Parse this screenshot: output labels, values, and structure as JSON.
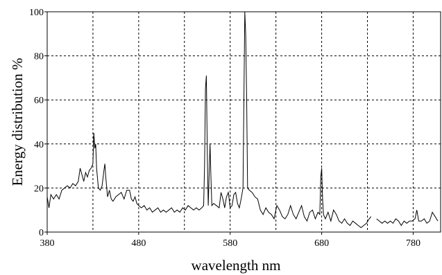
{
  "chart_data": {
    "type": "line",
    "xlabel": "wavelength nm",
    "ylabel": "Energy distribution %",
    "xlim": [
      380,
      810
    ],
    "ylim": [
      0,
      100
    ],
    "xticks": [
      380,
      480,
      580,
      680,
      780
    ],
    "xminor": [
      430,
      530,
      630,
      730
    ],
    "yticks": [
      0,
      20,
      40,
      60,
      80,
      100
    ],
    "grid": true,
    "series": [
      {
        "color": "#000000",
        "x": [
          380,
          382,
          384,
          387,
          390,
          393,
          396,
          399,
          402,
          405,
          408,
          411,
          414,
          416,
          418,
          420,
          422,
          424,
          426,
          428,
          430,
          431,
          432,
          433,
          434,
          436,
          438,
          440,
          442,
          443,
          444,
          446,
          448,
          450,
          452,
          455,
          458,
          461,
          464,
          467,
          470,
          472,
          474,
          476,
          478,
          480,
          483,
          486,
          489,
          492,
          495,
          498,
          501,
          504,
          507,
          510,
          513,
          516,
          519,
          522,
          525,
          528,
          531,
          534,
          537,
          540,
          543,
          546,
          549,
          551,
          552,
          553,
          554,
          555,
          556,
          558,
          559,
          560,
          562,
          565,
          568,
          570,
          572,
          574,
          576,
          578,
          580,
          582,
          584,
          586,
          588,
          590,
          592,
          594,
          595,
          596,
          597,
          598,
          599,
          601,
          604,
          607,
          610,
          613,
          616,
          619,
          622,
          625,
          628,
          631,
          634,
          637,
          640,
          643,
          646,
          649,
          652,
          655,
          658,
          661,
          664,
          667,
          670,
          673,
          676,
          678,
          679,
          680,
          681,
          682,
          684,
          687,
          690,
          693,
          696,
          699,
          702,
          705,
          708,
          711,
          714,
          717,
          720,
          723,
          726,
          729,
          732,
          734,
          737,
          740,
          743,
          746,
          749,
          752,
          755,
          758,
          761,
          764,
          767,
          770,
          773,
          776,
          779,
          782,
          784,
          786,
          789,
          792,
          795,
          798,
          801,
          804,
          807
        ],
        "values": [
          16,
          11,
          17,
          15,
          17,
          15,
          19,
          20,
          21,
          20,
          22,
          21,
          23,
          29,
          26,
          23,
          27,
          25,
          28,
          29,
          31,
          45,
          38,
          40,
          29,
          20,
          19,
          21,
          28,
          31,
          25,
          16,
          19,
          15,
          14,
          16,
          17,
          18,
          15,
          19,
          19,
          15,
          14,
          16,
          13,
          12,
          11,
          12,
          10,
          11,
          9,
          10,
          11,
          9,
          10,
          9,
          10,
          11,
          9,
          10,
          9,
          11,
          10,
          12,
          11,
          10,
          11,
          10,
          11,
          12,
          30,
          65,
          71,
          35,
          12,
          40,
          25,
          12,
          13,
          12,
          11,
          18,
          15,
          11,
          16,
          18,
          11,
          12,
          17,
          18,
          13,
          11,
          15,
          20,
          60,
          100,
          90,
          60,
          20,
          19,
          18,
          16,
          15,
          10,
          8,
          11,
          9,
          8,
          6,
          12,
          10,
          7,
          6,
          8,
          12,
          8,
          6,
          9,
          12,
          7,
          5,
          9,
          10,
          6,
          9,
          8,
          25,
          29,
          15,
          8,
          6,
          9,
          5,
          10,
          8,
          5,
          4,
          6,
          4,
          3,
          5,
          4,
          3,
          2,
          3,
          4,
          6,
          7,
          null,
          6,
          5,
          4,
          5,
          4,
          5,
          4,
          6,
          5,
          3,
          5,
          4,
          5,
          5,
          6,
          10,
          5,
          5,
          6,
          4,
          5,
          9,
          7,
          5
        ]
      }
    ]
  }
}
